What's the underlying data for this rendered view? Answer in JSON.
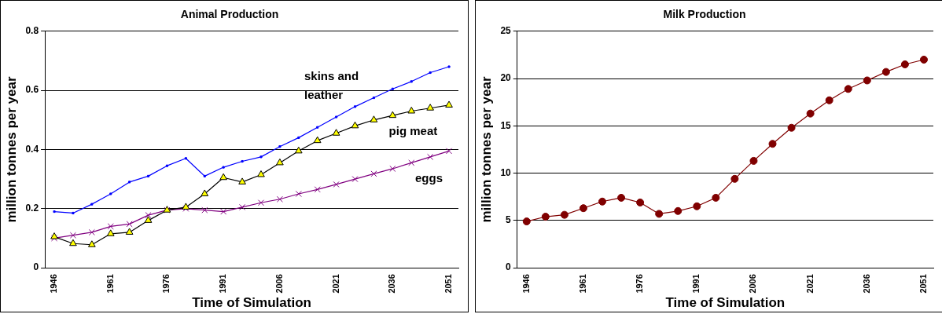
{
  "chart_data": [
    {
      "type": "line",
      "title": "Animal Production",
      "xlabel": "Time of Simulation",
      "ylabel": "million tonnes per year",
      "categories": [
        "1946",
        null,
        null,
        "1961",
        null,
        null,
        "1976",
        null,
        null,
        "1991",
        null,
        null,
        "2006",
        null,
        null,
        "2021",
        null,
        null,
        "2036",
        null,
        null,
        "2051"
      ],
      "ylim": [
        0,
        0.8
      ],
      "yticks": [
        0,
        0.2,
        0.4,
        0.6,
        0.8
      ],
      "grid": "y",
      "legend": false,
      "series": [
        {
          "name": "skins and leather",
          "color": "#0000ff",
          "marker": "square",
          "values": [
            0.19,
            0.185,
            0.215,
            0.25,
            0.29,
            0.31,
            0.345,
            0.37,
            0.31,
            0.34,
            0.36,
            0.375,
            0.41,
            0.44,
            0.475,
            0.51,
            0.545,
            0.575,
            0.605,
            0.63,
            0.66,
            0.68
          ]
        },
        {
          "name": "pig meat",
          "color": "#000000",
          "marker": "triangle",
          "values": [
            0.105,
            0.082,
            0.078,
            0.115,
            0.12,
            0.16,
            0.195,
            0.205,
            0.25,
            0.305,
            0.29,
            0.315,
            0.355,
            0.395,
            0.43,
            0.455,
            0.48,
            0.5,
            0.515,
            0.53,
            0.54,
            0.55
          ]
        },
        {
          "name": "eggs",
          "color": "#800080",
          "marker": "cross",
          "values": [
            0.1,
            0.11,
            0.12,
            0.14,
            0.148,
            0.178,
            0.195,
            0.2,
            0.195,
            0.19,
            0.205,
            0.22,
            0.232,
            0.25,
            0.265,
            0.282,
            0.3,
            0.318,
            0.335,
            0.355,
            0.375,
            0.395
          ]
        }
      ]
    },
    {
      "type": "line",
      "title": "Milk Production",
      "xlabel": "Time of Simulation",
      "ylabel": "million tonnes per year",
      "categories": [
        "1946",
        null,
        null,
        "1961",
        null,
        null,
        "1976",
        null,
        null,
        "1991",
        null,
        null,
        "2006",
        null,
        null,
        "2021",
        null,
        null,
        "2036",
        null,
        null,
        "2051"
      ],
      "ylim": [
        0,
        25
      ],
      "yticks": [
        0,
        5,
        10,
        15,
        20,
        25
      ],
      "grid": "y",
      "legend": false,
      "series": [
        {
          "color": "#800000",
          "marker": "circle",
          "values": [
            4.9,
            5.4,
            5.6,
            6.3,
            7.0,
            7.4,
            6.9,
            5.7,
            6.0,
            6.5,
            7.4,
            9.4,
            11.3,
            13.1,
            14.8,
            16.3,
            17.7,
            18.9,
            19.8,
            20.7,
            21.5,
            22.0
          ]
        }
      ]
    }
  ]
}
